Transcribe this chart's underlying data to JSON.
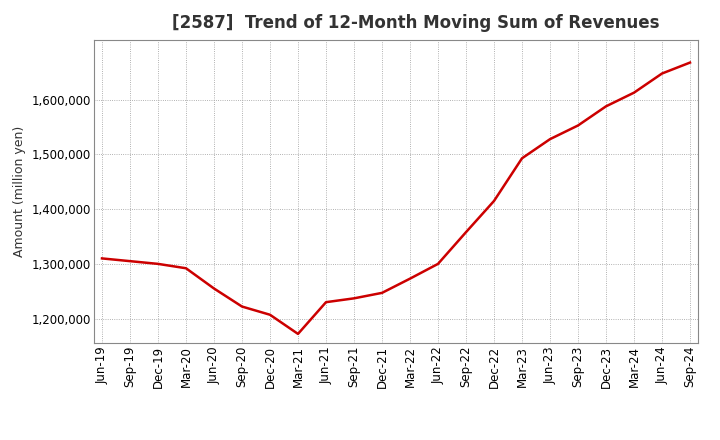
{
  "title": "[2587]  Trend of 12-Month Moving Sum of Revenues",
  "ylabel": "Amount (million yen)",
  "line_color": "#cc0000",
  "line_width": 1.8,
  "background_color": "#ffffff",
  "grid_color": "#999999",
  "x_labels": [
    "Jun-19",
    "Sep-19",
    "Dec-19",
    "Mar-20",
    "Jun-20",
    "Sep-20",
    "Dec-20",
    "Mar-21",
    "Jun-21",
    "Sep-21",
    "Dec-21",
    "Mar-22",
    "Jun-22",
    "Sep-22",
    "Dec-22",
    "Mar-23",
    "Jun-23",
    "Sep-23",
    "Dec-23",
    "Mar-24",
    "Jun-24",
    "Sep-24"
  ],
  "y_values": [
    1310000,
    1305000,
    1300000,
    1292000,
    1255000,
    1222000,
    1207000,
    1172000,
    1230000,
    1237000,
    1247000,
    1273000,
    1300000,
    1358000,
    1415000,
    1493000,
    1528000,
    1553000,
    1588000,
    1613000,
    1648000,
    1668000
  ],
  "ylim": [
    1155000,
    1710000
  ],
  "yticks": [
    1200000,
    1300000,
    1400000,
    1500000,
    1600000
  ],
  "title_fontsize": 12,
  "label_fontsize": 9,
  "tick_fontsize": 8.5,
  "title_color": "#333333"
}
